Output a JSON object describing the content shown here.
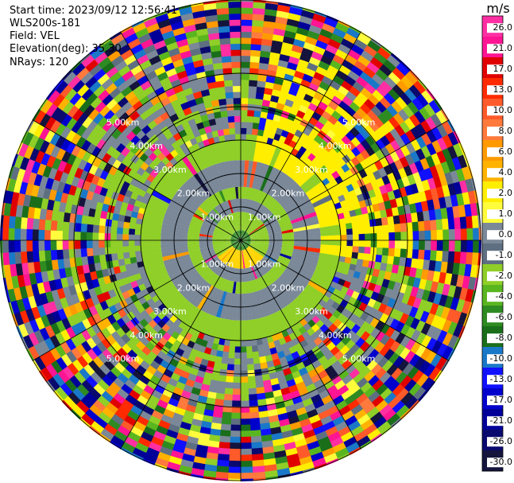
{
  "header": {
    "start_time": "Start time: 2023/09/12 12:56:41",
    "instrument": "WLS200s-181",
    "field": "Field: VEL",
    "elevation": "Elevation(deg): 35.30",
    "nrays": "NRays: 120"
  },
  "chart_data": {
    "type": "polar-ppi",
    "range_rings_km": [
      1,
      2,
      3,
      4,
      5
    ],
    "range_ring_labels": [
      "1.00km",
      "2.00km",
      "3.00km",
      "4.00km",
      "5.00km"
    ],
    "spokes_deg": [
      0,
      30,
      60,
      90,
      120,
      150,
      180,
      210,
      240,
      270,
      300,
      330
    ],
    "colorbar": {
      "unit": "m/s",
      "ticks": [
        "26.0",
        "21.0",
        "17.0",
        "13.0",
        "10.0",
        "8.0",
        "6.0",
        "4.0",
        "2.0",
        "1.0",
        "0.0",
        "-1.0",
        "-2.0",
        "-4.0",
        "-6.0",
        "-8.0",
        "-10.0",
        "-13.0",
        "-17.0",
        "-21.0",
        "-26.0",
        "-30.0"
      ],
      "colors": [
        "#ff2fa3",
        "#ff1493",
        "#e00000",
        "#ff2a00",
        "#ff5a2a",
        "#ff7a3c",
        "#ff9a00",
        "#ffb300",
        "#ffee00",
        "#fffc3c",
        "#7a8898",
        "#5f6f82",
        "#8fcf28",
        "#5ab61e",
        "#2e8b22",
        "#1a6e1a",
        "#1a78c8",
        "#1010ff",
        "#0000cc",
        "#000099",
        "#0a0a6e",
        "#14143c"
      ]
    },
    "inner_pattern": [
      {
        "r_start": 0.0,
        "r_end": 0.3,
        "color": "#2e8b22"
      },
      {
        "r_start": 0.3,
        "r_end": 0.85,
        "color": "#8fcf28",
        "south": "#ffd400"
      },
      {
        "r_start": 0.85,
        "r_end": 1.25,
        "color": "#7a8898"
      },
      {
        "r_start": 1.25,
        "r_end": 1.6,
        "color": "#8fcf28"
      },
      {
        "r_start": 1.6,
        "r_end": 2.4,
        "color": "#7a8898"
      },
      {
        "r_start": 2.4,
        "r_end": 3.0,
        "color": "#8fcf28",
        "northeast": "#ffee00"
      }
    ]
  }
}
